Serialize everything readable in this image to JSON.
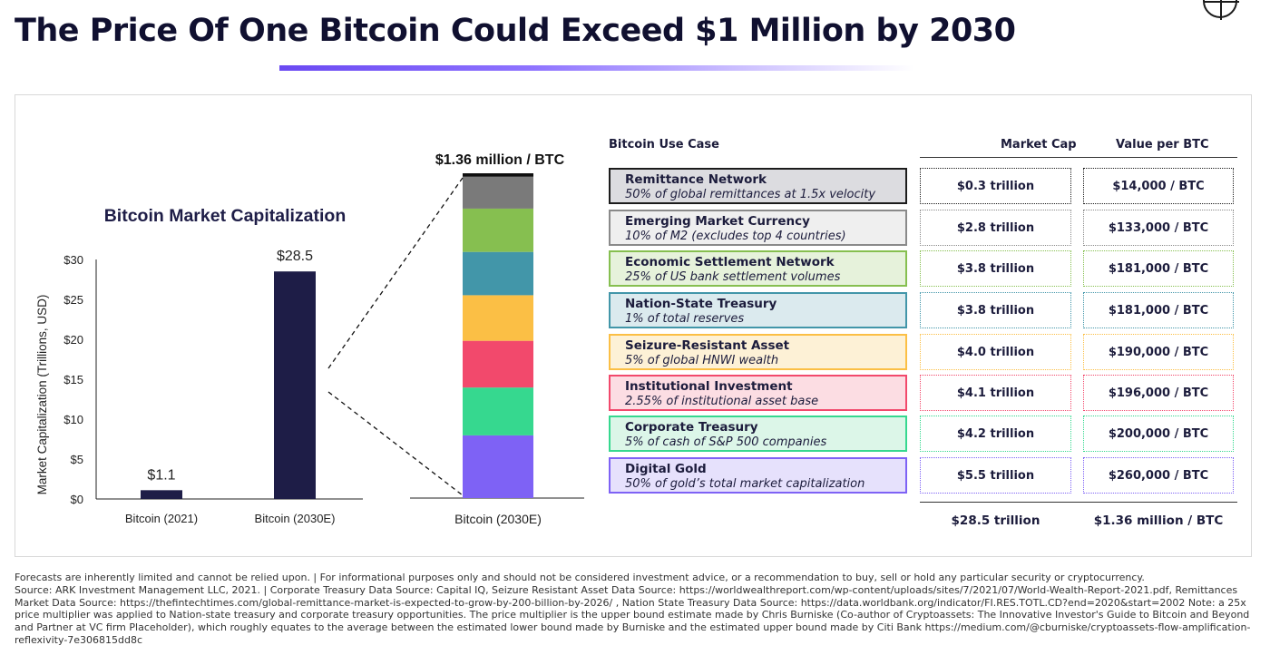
{
  "title": "The Price Of One Bitcoin Could Exceed $1 Million by 2030",
  "colors": {
    "bar": "#1e1d47",
    "accent": "#6a49f2"
  },
  "chart_data": [
    {
      "type": "bar",
      "title": "Bitcoin Market Capitalization",
      "ylabel": "Market Capitalization (Trillions, USD)",
      "ylim": [
        0,
        30
      ],
      "yticks": [
        0,
        5,
        10,
        15,
        20,
        25,
        30
      ],
      "ytick_labels": [
        "$0",
        "$5",
        "$10",
        "$15",
        "$20",
        "$25",
        "$30"
      ],
      "categories": [
        "Bitcoin (2021)",
        "Bitcoin (2030E)"
      ],
      "values": [
        1.1,
        28.5
      ],
      "data_labels": [
        "$1.1",
        "$28.5"
      ]
    },
    {
      "type": "bar",
      "stacked": true,
      "title": "$1.36 million / BTC",
      "categories": [
        "Bitcoin (2030E)"
      ],
      "series": [
        {
          "name": "Digital Gold",
          "value": 5.5,
          "color": "#7e62f5"
        },
        {
          "name": "Corporate Treasury",
          "value": 4.2,
          "color": "#36d88f"
        },
        {
          "name": "Institutional Investment",
          "value": 4.1,
          "color": "#f2496c"
        },
        {
          "name": "Seizure-Resistant Asset",
          "value": 4.0,
          "color": "#fbbf45"
        },
        {
          "name": "Nation-State Treasury",
          "value": 3.8,
          "color": "#4296a9"
        },
        {
          "name": "Economic Settlement Network",
          "value": 3.8,
          "color": "#86bf50"
        },
        {
          "name": "Emerging Market Currency",
          "value": 2.8,
          "color": "#7a7a7a"
        },
        {
          "name": "Remittance Network",
          "value": 0.3,
          "color": "#0f0f0f"
        }
      ]
    }
  ],
  "table": {
    "headers": {
      "use_case": "Bitcoin Use Case",
      "market_cap": "Market Cap",
      "value_per_btc": "Value per BTC"
    },
    "rows": [
      {
        "title": "Remittance Network",
        "desc": "50% of global remittances at 1.5x velocity",
        "market_cap": "$0.3 trillion",
        "value": "$14,000 / BTC",
        "color": "#1c1c1c",
        "fill": "#dcdce0"
      },
      {
        "title": "Emerging Market Currency",
        "desc": "10% of M2 (excludes top 4 countries)",
        "market_cap": "$2.8 trillion",
        "value": "$133,000 / BTC",
        "color": "#8a8a8a",
        "fill": "#efefef"
      },
      {
        "title": "Economic Settlement Network",
        "desc": "25% of US bank settlement volumes",
        "market_cap": "$3.8 trillion",
        "value": "$181,000 / BTC",
        "color": "#86bf50",
        "fill": "#e6f2db"
      },
      {
        "title": "Nation-State Treasury",
        "desc": "1% of total reserves",
        "market_cap": "$3.8 trillion",
        "value": "$181,000 / BTC",
        "color": "#4296a9",
        "fill": "#dbeaee"
      },
      {
        "title": "Seizure-Resistant Asset",
        "desc": "5% of global HNWI wealth",
        "market_cap": "$4.0 trillion",
        "value": "$190,000 / BTC",
        "color": "#fbbf45",
        "fill": "#fdf1d6"
      },
      {
        "title": "Institutional Investment",
        "desc": "2.55% of institutional asset base",
        "market_cap": "$4.1 trillion",
        "value": "$196,000 / BTC",
        "color": "#f2496c",
        "fill": "#fcdde3"
      },
      {
        "title": "Corporate Treasury",
        "desc": "5% of cash of S&P 500 companies",
        "market_cap": "$4.2 trillion",
        "value": "$200,000 / BTC",
        "color": "#36d88f",
        "fill": "#dcf6e8"
      },
      {
        "title": "Digital Gold",
        "desc": "50% of gold’s total market capitalization",
        "market_cap": "$5.5 trillion",
        "value": "$260,000 / BTC",
        "color": "#7e62f5",
        "fill": "#e6e1fc"
      }
    ],
    "totals": {
      "market_cap": "$28.5 trillion",
      "value": "$1.36 million / BTC"
    }
  },
  "footnote": [
    "Forecasts are inherently limited and cannot be relied upon. | For informational purposes only and should not be considered investment advice, or a recommendation to buy, sell or hold any particular security or cryptocurrency.",
    "Source: ARK Investment Management LLC, 2021.  |  Corporate Treasury Data Source: Capital IQ, Seizure Resistant Asset Data Source: https://worldwealthreport.com/wp-content/uploads/sites/7/2021/07/World-Wealth-Report-2021.pdf, Remittances Market Data Source: https://thefintechtimes.com/global-remittance-market-is-expected-to-grow-by-200-billion-by-2026/ , Nation State Treasury Data Source: https://data.worldbank.org/indicator/FI.RES.TOTL.CD?end=2020&start=2002 Note: a 25x price multiplier was applied to Nation-state treasury and corporate treasury opportunities. The price multiplier is  the upper bound estimate made by Chris Burniske (Co-author of Cryptoassets: The Innovative Investor's Guide to Bitcoin and Beyond and Partner at VC firm Placeholder), which roughly equates to the average between the estimated lower bound made by Burniske and the estimated upper bound made by Citi Bank https://medium.com/@cburniske/cryptoassets-flow-amplification-reflexivity-7e306815dd8c"
  ]
}
